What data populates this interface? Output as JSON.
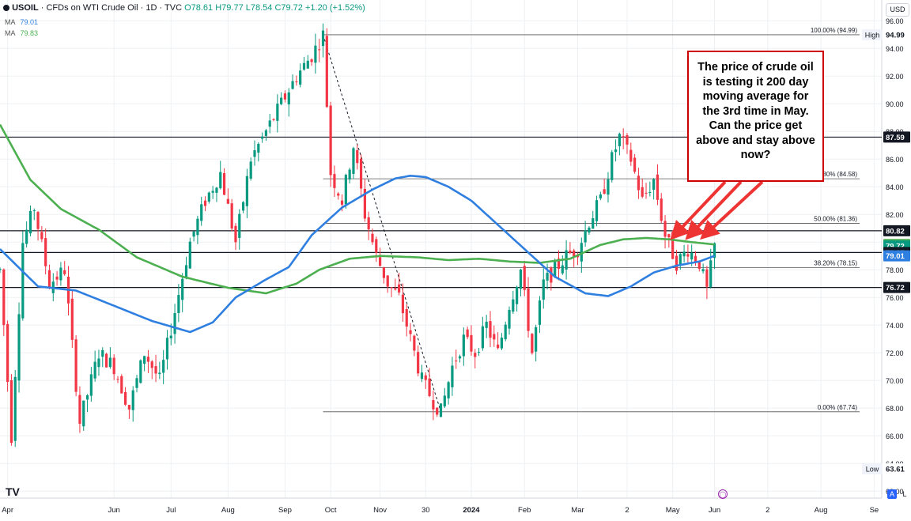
{
  "header": {
    "symbol": "USOIL",
    "description": "· CFDs on WTI Crude Oil · 1D · TVC",
    "ohlc_prefix": "O",
    "open": "78.61",
    "high": "79.77",
    "low": "78.54",
    "close": "79.72",
    "change": "+1.20 (+1.52%)",
    "ohlc_text": "O78.61 H79.77 L78.54 C79.72 +1.20 (+1.52%)"
  },
  "indicators": [
    {
      "label": "MA",
      "value": "79.01",
      "color": "#2f7fe0"
    },
    {
      "label": "MA",
      "value": "79.83",
      "color": "#4caf50"
    }
  ],
  "currency_button": "USD",
  "annotation": "The price of crude oil is testing it 200 day moving average for the 3rd time in May. Can the price get above and stay above now?",
  "logo_text": "TV",
  "scale_buttons": {
    "auto": "A",
    "log": "L"
  },
  "chart_data": {
    "type": "candlestick",
    "title": "",
    "ylim": [
      61.5,
      97.5
    ],
    "y_ticks": [
      62,
      64,
      66,
      68,
      70,
      72,
      74,
      76,
      78,
      80,
      82,
      84,
      86,
      88,
      90,
      92,
      94,
      96
    ],
    "x_ticks": [
      "Apr",
      "Jun",
      "Jul",
      "Aug",
      "Sep",
      "Oct",
      "Nov",
      "30",
      "2024",
      "Feb",
      "Mar",
      "2",
      "May",
      "Jun",
      "2",
      "Aug",
      "Se"
    ],
    "x_tick_index": [
      2,
      30,
      45,
      60,
      75,
      87,
      100,
      112,
      124,
      138,
      152,
      165,
      177,
      188,
      202,
      216,
      230
    ],
    "colors": {
      "up": "#089981",
      "down": "#f23645",
      "ma_fast": "#2f7fe0",
      "ma_slow": "#4caf50"
    },
    "price_path": [
      [
        0,
        78
      ],
      [
        3,
        66
      ],
      [
        6,
        80
      ],
      [
        9,
        82.5
      ],
      [
        13,
        77
      ],
      [
        17,
        78
      ],
      [
        21,
        67
      ],
      [
        26,
        72
      ],
      [
        30,
        71
      ],
      [
        34,
        68
      ],
      [
        38,
        72
      ],
      [
        42,
        70
      ],
      [
        46,
        75
      ],
      [
        50,
        80
      ],
      [
        54,
        83
      ],
      [
        58,
        85
      ],
      [
        62,
        80
      ],
      [
        66,
        86
      ],
      [
        70,
        88
      ],
      [
        74,
        90
      ],
      [
        78,
        92
      ],
      [
        82,
        93.5
      ],
      [
        85,
        94.99
      ],
      [
        87,
        85
      ],
      [
        90,
        83
      ],
      [
        93,
        87
      ],
      [
        96,
        82
      ],
      [
        99,
        79
      ],
      [
        102,
        77
      ],
      [
        105,
        76
      ],
      [
        108,
        73
      ],
      [
        111,
        70
      ],
      [
        114,
        68.5
      ],
      [
        116,
        67.74
      ],
      [
        119,
        71
      ],
      [
        122,
        73
      ],
      [
        125,
        72
      ],
      [
        128,
        74
      ],
      [
        131,
        72
      ],
      [
        134,
        75.5
      ],
      [
        137,
        78
      ],
      [
        140,
        72
      ],
      [
        143,
        77
      ],
      [
        146,
        78
      ],
      [
        149,
        79
      ],
      [
        152,
        79.5
      ],
      [
        155,
        81.5
      ],
      [
        158,
        83
      ],
      [
        161,
        86
      ],
      [
        163,
        87.6
      ],
      [
        166,
        86
      ],
      [
        169,
        83
      ],
      [
        172,
        84.5
      ],
      [
        175,
        80.5
      ],
      [
        178,
        78.5
      ],
      [
        181,
        79.5
      ],
      [
        184,
        78.5
      ],
      [
        186,
        76.5
      ],
      [
        188,
        79.72
      ]
    ],
    "ma_fast_path": [
      [
        0,
        79.5
      ],
      [
        10,
        76.8
      ],
      [
        20,
        76.5
      ],
      [
        30,
        75.4
      ],
      [
        40,
        74.3
      ],
      [
        50,
        73.5
      ],
      [
        56,
        74.2
      ],
      [
        62,
        76
      ],
      [
        70,
        77.3
      ],
      [
        76,
        78.2
      ],
      [
        82,
        80.5
      ],
      [
        90,
        82.5
      ],
      [
        98,
        83.8
      ],
      [
        104,
        84.6
      ],
      [
        108,
        84.8
      ],
      [
        112,
        84.7
      ],
      [
        118,
        84
      ],
      [
        124,
        83
      ],
      [
        130,
        81.5
      ],
      [
        138,
        79.5
      ],
      [
        146,
        77.5
      ],
      [
        154,
        76.3
      ],
      [
        160,
        76.1
      ],
      [
        166,
        76.8
      ],
      [
        172,
        77.8
      ],
      [
        178,
        78.3
      ],
      [
        184,
        78.6
      ],
      [
        188,
        79.01
      ]
    ],
    "ma_slow_path": [
      [
        0,
        88.5
      ],
      [
        8,
        84.5
      ],
      [
        16,
        82.4
      ],
      [
        26,
        80.9
      ],
      [
        36,
        78.9
      ],
      [
        48,
        77.5
      ],
      [
        60,
        76.7
      ],
      [
        70,
        76.3
      ],
      [
        78,
        77
      ],
      [
        84,
        78
      ],
      [
        92,
        78.8
      ],
      [
        100,
        79
      ],
      [
        110,
        78.9
      ],
      [
        118,
        78.7
      ],
      [
        126,
        78.8
      ],
      [
        134,
        78.6
      ],
      [
        142,
        78.5
      ],
      [
        150,
        78.8
      ],
      [
        158,
        79.8
      ],
      [
        164,
        80.2
      ],
      [
        170,
        80.3
      ],
      [
        176,
        80.2
      ],
      [
        182,
        80
      ],
      [
        188,
        79.83
      ]
    ],
    "horizontal_levels": [
      87.59,
      80.82,
      79.25,
      76.72
    ],
    "fibonacci": {
      "from_index": 85,
      "to_index": 188,
      "high": 94.99,
      "low": 67.74,
      "levels": [
        {
          "label": "100.00% (94.99)",
          "value": 94.99
        },
        {
          "label": "61.80% (84.58)",
          "value": 84.58
        },
        {
          "label": "50.00% (81.36)",
          "value": 81.36
        },
        {
          "label": "38.20% (78.15)",
          "value": 78.15
        },
        {
          "label": "0.00% (67.74)",
          "value": 67.74
        }
      ]
    },
    "trend_line": {
      "from": [
        85,
        94.99
      ],
      "to": [
        116,
        67.74
      ]
    },
    "price_labels": [
      {
        "text": "94.99",
        "value": 94.99,
        "bg": "#ffffff",
        "fg": "#131722",
        "tag": "High"
      },
      {
        "text": "87.59",
        "value": 87.59,
        "bg": "#131722",
        "fg": "#ffffff"
      },
      {
        "text": "80.82",
        "value": 80.82,
        "bg": "#131722",
        "fg": "#ffffff"
      },
      {
        "text": "79.83",
        "value": 79.83,
        "bg": "#4caf50",
        "fg": "#ffffff"
      },
      {
        "text": "79.72",
        "value": 79.72,
        "bg": "#089981",
        "fg": "#ffffff"
      },
      {
        "text": "79.25",
        "value": 79.25,
        "bg": "#131722",
        "fg": "#ffffff"
      },
      {
        "text": "79.01",
        "value": 79.01,
        "bg": "#2f7fe0",
        "fg": "#ffffff"
      },
      {
        "text": "76.72",
        "value": 76.72,
        "bg": "#131722",
        "fg": "#ffffff"
      },
      {
        "text": "63.61",
        "value": 63.61,
        "bg": "#ffffff",
        "fg": "#131722",
        "tag": "Low"
      }
    ],
    "arrows": [
      {
        "from": [
          917,
          230
        ],
        "to_index": 178,
        "to_value": 80.3
      },
      {
        "from": [
          937,
          230
        ],
        "to_index": 182,
        "to_value": 80.3
      },
      {
        "from": [
          964,
          230
        ],
        "to_index": 186,
        "to_value": 80.3
      }
    ]
  }
}
